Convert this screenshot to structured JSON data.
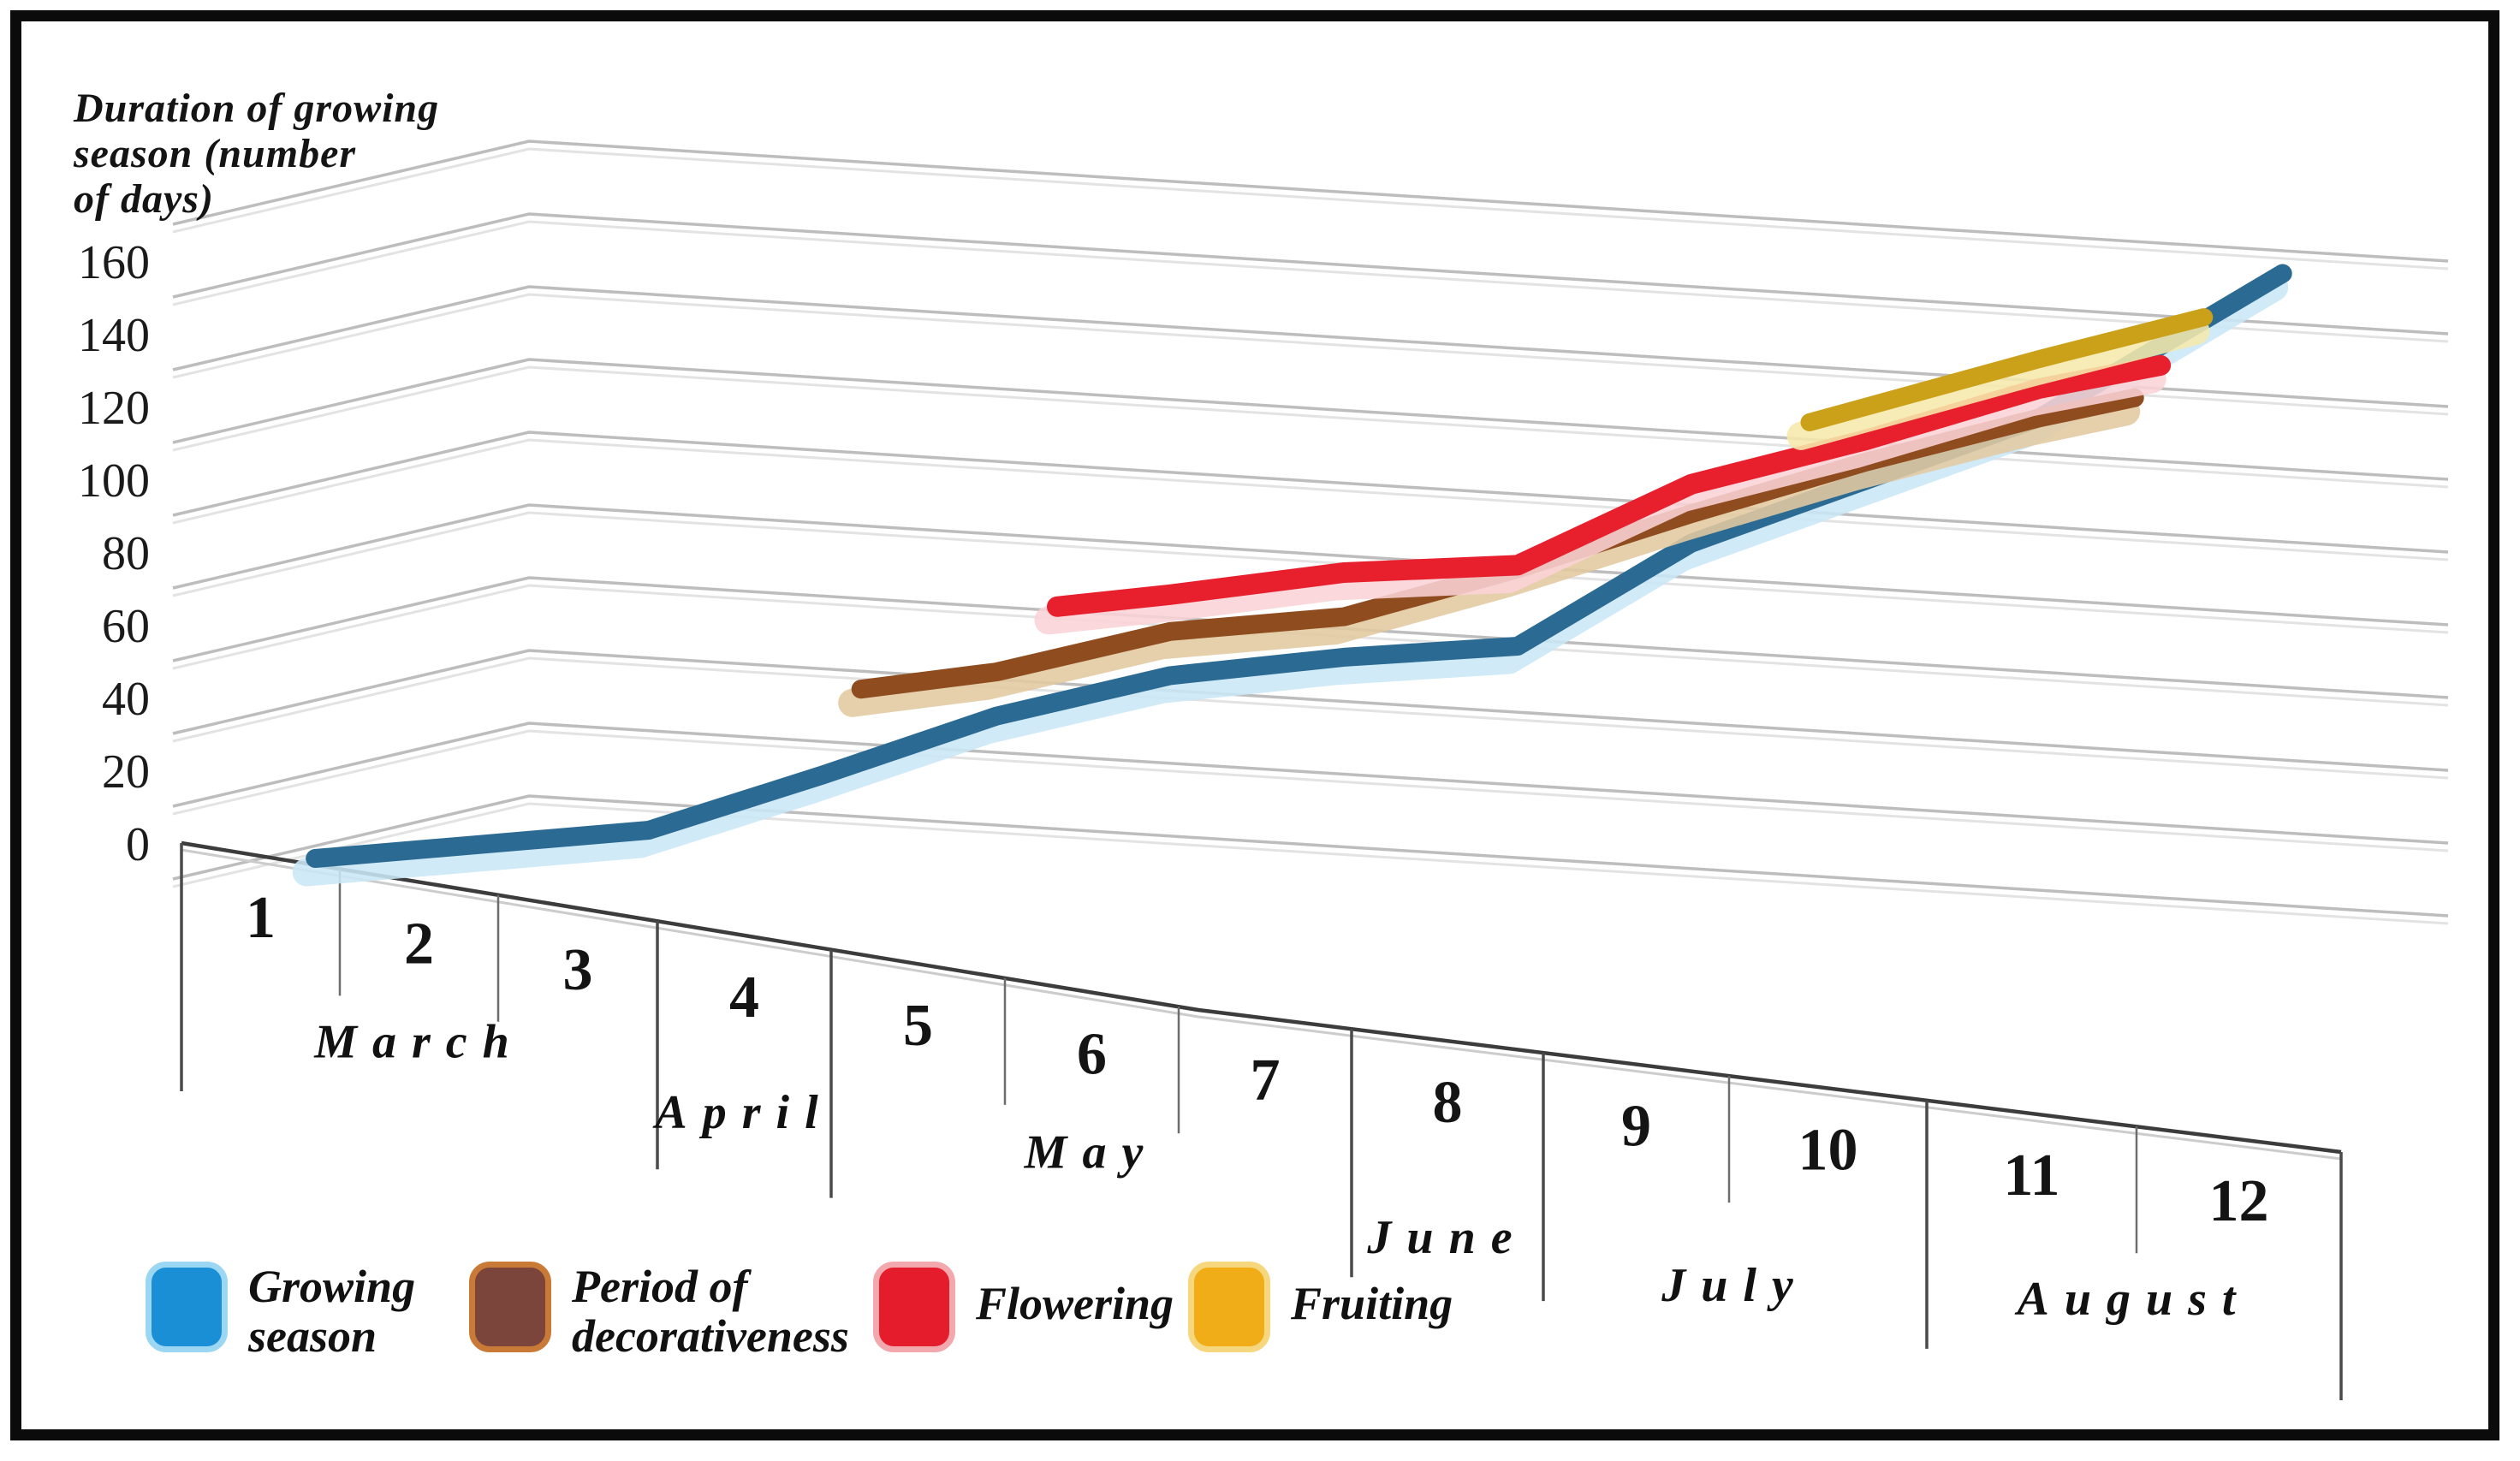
{
  "title": {
    "lines": [
      "Duration of growing",
      "season (number",
      "of days)"
    ]
  },
  "y_axis": {
    "tick_values": [
      0,
      20,
      40,
      60,
      80,
      100,
      120,
      140,
      160
    ]
  },
  "x_axis": {
    "period_labels": [
      "1",
      "2",
      "3",
      "4",
      "5",
      "6",
      "7",
      "8",
      "9",
      "10",
      "11",
      "12"
    ],
    "months": [
      {
        "label": "March",
        "from": 1,
        "to": 3
      },
      {
        "label": "April",
        "from": 4,
        "to": 4
      },
      {
        "label": "May",
        "from": 5,
        "to": 7
      },
      {
        "label": "June",
        "from": 8,
        "to": 8
      },
      {
        "label": "July",
        "from": 9,
        "to": 10
      },
      {
        "label": "August",
        "from": 11,
        "to": 12
      }
    ]
  },
  "legend": [
    {
      "lines": [
        "Growing",
        "season"
      ],
      "color": "#1b8fd6",
      "glow": "#9bd6f2"
    },
    {
      "lines": [
        "Period of",
        "decorativeness"
      ],
      "color": "#7c453c",
      "glow": "#c87a36"
    },
    {
      "lines": [
        "Flowering"
      ],
      "color": "#e41c2b",
      "glow": "#f3a8ad"
    },
    {
      "lines": [
        "Fruiting"
      ],
      "color": "#f1ad17",
      "glow": "#f6d77e"
    }
  ],
  "chart_data": {
    "type": "line",
    "title": "Duration of growing season (number of days)",
    "ylabel": "Duration of growing season (number of days)",
    "xlabel": "",
    "x": [
      1,
      2,
      3,
      4,
      5,
      6,
      7,
      8,
      9,
      10,
      11,
      12
    ],
    "x_month_groups": [
      [
        "March",
        1,
        3
      ],
      [
        "April",
        4,
        4
      ],
      [
        "May",
        5,
        7
      ],
      [
        "June",
        8,
        8
      ],
      [
        "July",
        9,
        10
      ],
      [
        "August",
        11,
        12
      ]
    ],
    "ylim": [
      0,
      160
    ],
    "grid_lines_to": 180,
    "y_tick_step": 20,
    "grid": "on",
    "legend_position": "bottom",
    "style": "3d-perspective",
    "series": [
      {
        "name": "Growing season",
        "color": "#2b6a92",
        "shadow": "#c9e7f7",
        "values": [
          2,
          6,
          10,
          25,
          41,
          52,
          57,
          60,
          88,
          105,
          122,
          150
        ]
      },
      {
        "name": "Period of decorativeness",
        "color": "#8f4c1f",
        "shadow": "#e3c9a1",
        "values": [
          null,
          null,
          null,
          47,
          53,
          64,
          68,
          81,
          96,
          110,
          122,
          132
        ]
      },
      {
        "name": "Flowering",
        "color": "#e8202e",
        "shadow": "#fad3d6",
        "values": [
          null,
          null,
          null,
          null,
          69,
          74,
          80,
          82,
          104,
          116,
          130,
          139
        ]
      },
      {
        "name": "Fruiting",
        "color": "#cba119",
        "shadow": "#f6e9ac",
        "values": [
          null,
          null,
          null,
          null,
          null,
          null,
          null,
          null,
          null,
          125,
          138,
          150
        ]
      }
    ]
  }
}
